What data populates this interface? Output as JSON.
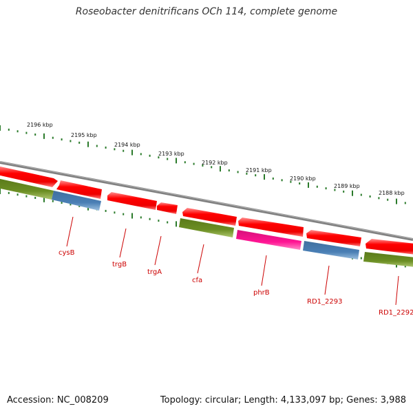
{
  "title": "Roseobacter denitrificans OCh 114, complete genome",
  "accession": "Accession: NC_008209",
  "topology": "Topology: circular; Length: 4,133,097 bp; Genes: 3,988",
  "colors": {
    "backbone": "#808080",
    "ticks": "#2a7a2a",
    "label_line": "#cc0000",
    "label_text": "#cc0000",
    "feature_red": "#ff0000",
    "feature_green": "#6b8e23",
    "feature_blue": "#4a7fb5",
    "feature_pink": "#ff1493"
  },
  "kbp_labels": [
    "2196 kbp",
    "2195 kbp",
    "2194 kbp",
    "2193 kbp",
    "2192 kbp",
    "2191 kbp",
    "2190 kbp",
    "2189 kbp",
    "2188 kbp"
  ],
  "gene_labels": [
    "cysB",
    "trgB",
    "trgA",
    "cfa",
    "phrB",
    "RD1_2293",
    "RD1_2292"
  ],
  "features": [
    {
      "strand": "forward",
      "color": "red",
      "shape": "arrow-right"
    },
    {
      "strand": "forward",
      "color": "red",
      "shape": "arrow-right"
    },
    {
      "strand": "forward",
      "color": "red",
      "shape": "arrow-left"
    },
    {
      "strand": "forward",
      "color": "red",
      "shape": "arrow-left"
    },
    {
      "strand": "forward",
      "color": "red",
      "shape": "arrow-left"
    },
    {
      "strand": "forward",
      "color": "red",
      "shape": "arrow-left"
    },
    {
      "strand": "forward",
      "color": "red",
      "shape": "arrow-left"
    },
    {
      "strand": "forward",
      "color": "red",
      "shape": "arrow-left"
    },
    {
      "strand": "reverse",
      "color": "green",
      "shape": "box"
    },
    {
      "strand": "reverse",
      "color": "blue",
      "shape": "box"
    },
    {
      "strand": "reverse",
      "color": "green",
      "shape": "box"
    },
    {
      "strand": "reverse",
      "color": "pink",
      "shape": "box"
    },
    {
      "strand": "reverse",
      "color": "blue",
      "shape": "box"
    },
    {
      "strand": "reverse",
      "color": "green",
      "shape": "box"
    }
  ]
}
